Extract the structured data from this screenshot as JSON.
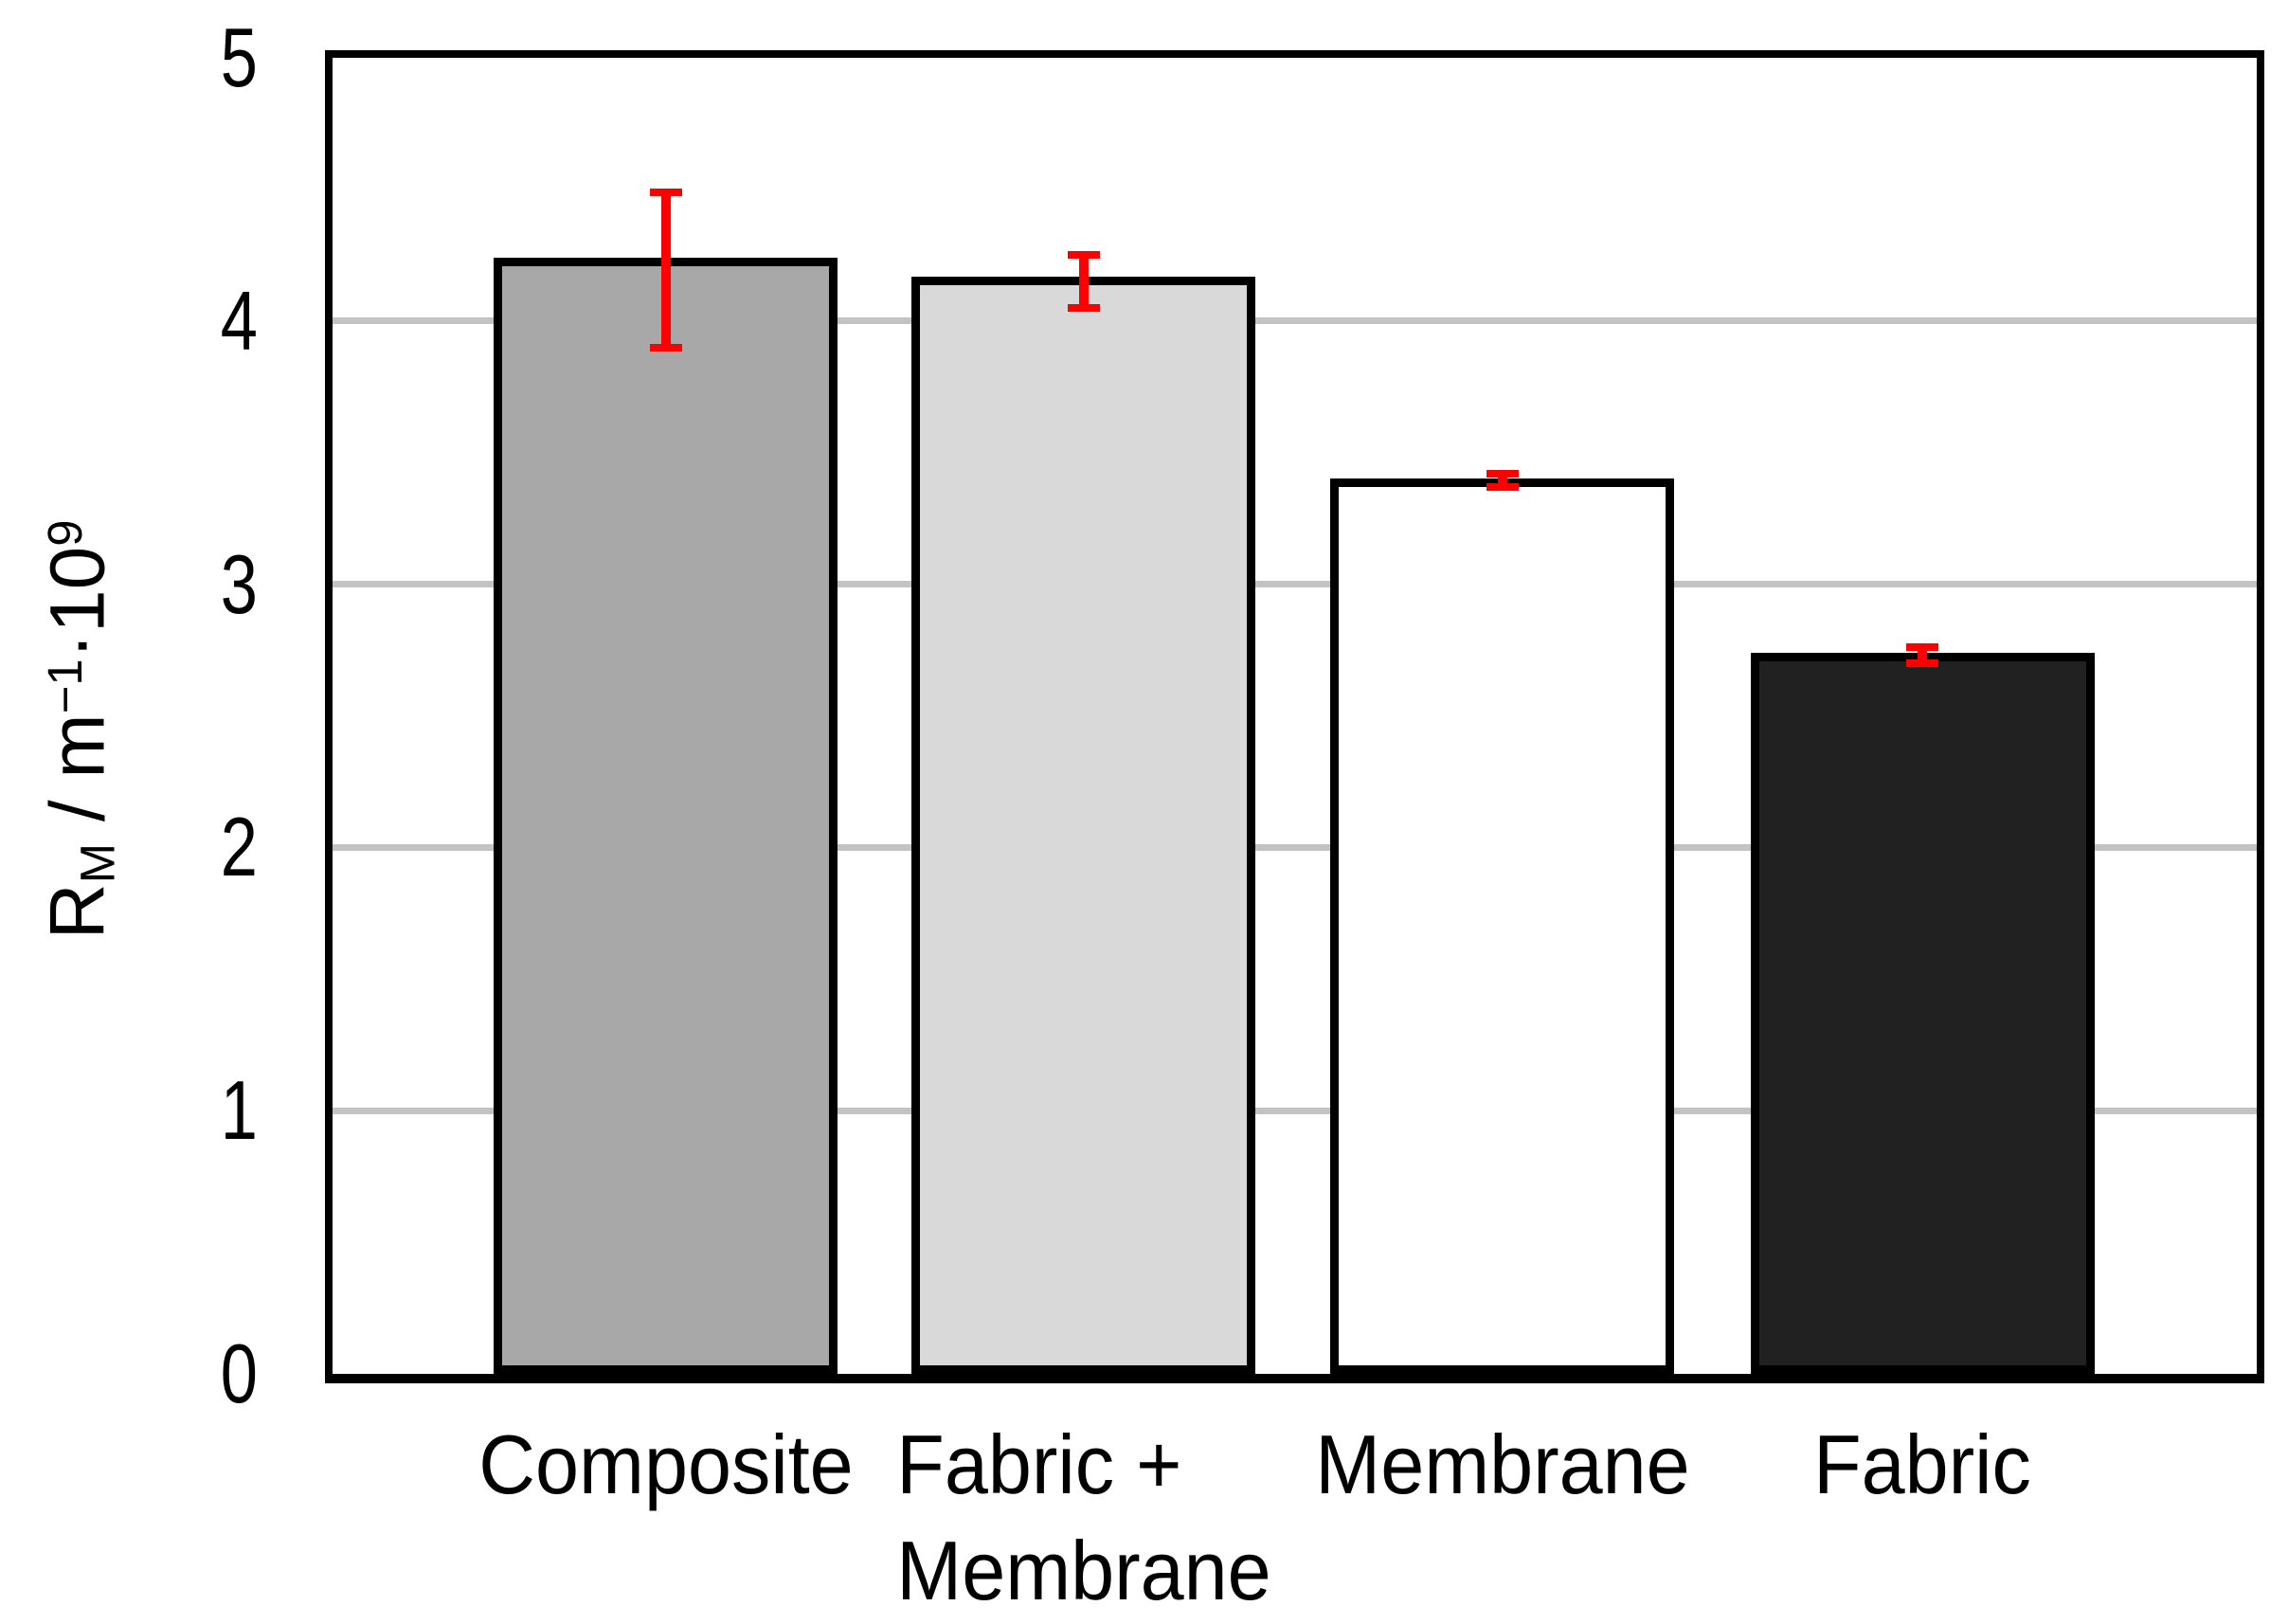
{
  "chart_data": {
    "type": "bar",
    "title": "",
    "categories": [
      "Composite",
      "Fabric +\nMembrane",
      "Membrane",
      "Fabric"
    ],
    "values": [
      4.24,
      4.17,
      3.4,
      2.74
    ],
    "error_bars": {
      "high": [
        4.49,
        4.25,
        3.42,
        2.76
      ],
      "low": [
        3.9,
        4.05,
        3.37,
        2.7
      ],
      "color": "#ff0000"
    },
    "ylabel_plain": "RM / m−1·10⁹",
    "ylabel_parts": [
      {
        "text": "R"
      },
      {
        "text": "M",
        "script": "sub"
      },
      {
        "text": " / m"
      },
      {
        "text": "−1",
        "script": "sup"
      },
      {
        "text": "·10"
      },
      {
        "text": "9",
        "script": "sup"
      }
    ],
    "xlabel": "",
    "ylim": [
      0,
      5
    ],
    "yticks": [
      0,
      1,
      2,
      3,
      4,
      5
    ],
    "grid": {
      "horizontal": true,
      "color": "#c3c3c3"
    },
    "legend": "none",
    "bar_styles": {
      "fills": [
        "#a8a8a8",
        "#d9d9d9",
        "#ffffff",
        "#212121"
      ],
      "border_color": "#000000"
    },
    "frame_color": "#000000",
    "background": "#ffffff",
    "text_color": "#000000"
  }
}
